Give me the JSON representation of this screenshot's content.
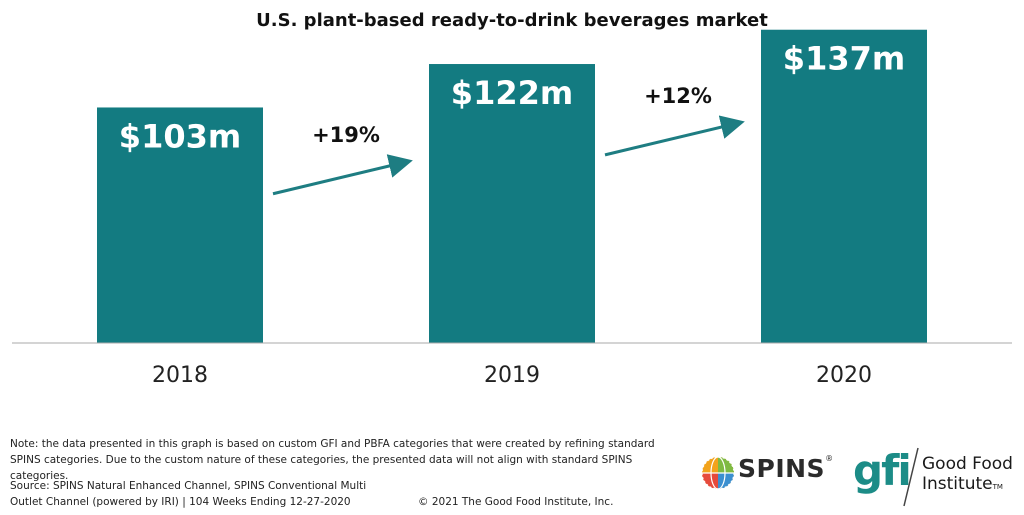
{
  "chart_data": {
    "type": "bar",
    "title": "U.S. plant-based ready-to-drink beverages market",
    "categories": [
      "2018",
      "2019",
      "2020"
    ],
    "values": [
      103,
      122,
      137
    ],
    "value_labels": [
      "$103m",
      "$122m",
      "$137m"
    ],
    "units": "$ millions",
    "ylim": [
      0,
      150
    ],
    "xlabel": "",
    "ylabel": "",
    "grid": false,
    "bar_color": "#137b81",
    "annotations": [
      {
        "from": "2018",
        "to": "2019",
        "label": "+19%"
      },
      {
        "from": "2019",
        "to": "2020",
        "label": "+12%"
      }
    ]
  },
  "footer": {
    "note": "Note: the data presented in this graph is based on custom GFI and PBFA categories that were created by refining standard SPINS categories. Due to the custom nature of these categories, the presented data will not align with standard SPINS categories.",
    "source": "Source: SPINS Natural Enhanced Channel, SPINS Conventional Multi Outlet Channel (powered by IRI) | 104 Weeks Ending 12-27-2020",
    "copyright": "© 2021 The Good Food Institute, Inc."
  },
  "logos": {
    "spins": {
      "text": "SPINS",
      "registered": "®"
    },
    "gfi": {
      "mark": "gfi",
      "name_line1": "Good Food",
      "name_line2": "Institute",
      "trademark": "TM"
    }
  },
  "colors": {
    "bar": "#137b81",
    "arrow": "#1e7d82",
    "gfi": "#1c8c87",
    "axis": "#aaaaaa"
  }
}
